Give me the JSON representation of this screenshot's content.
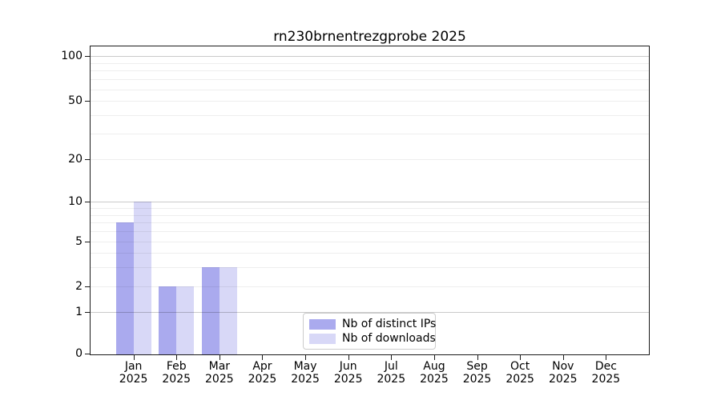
{
  "figure": {
    "background": "#ffffff"
  },
  "chart_data": {
    "type": "bar",
    "title": "rn230brnentrezgprobe 2025",
    "categories": [
      "Jan 2025",
      "Feb 2025",
      "Mar 2025",
      "Apr 2025",
      "May 2025",
      "Jun 2025",
      "Jul 2025",
      "Aug 2025",
      "Sep 2025",
      "Oct 2025",
      "Nov 2025",
      "Dec 2025"
    ],
    "months": [
      "Jan",
      "Feb",
      "Mar",
      "Apr",
      "May",
      "Jun",
      "Jul",
      "Aug",
      "Sep",
      "Oct",
      "Nov",
      "Dec"
    ],
    "year": "2025",
    "series": [
      {
        "name": "Nb of distinct IPs",
        "color": "#aaaaee",
        "values": [
          7,
          2,
          3,
          0,
          0,
          0,
          0,
          0,
          0,
          0,
          0,
          0
        ]
      },
      {
        "name": "Nb of downloads",
        "color": "#d8d8f7",
        "values": [
          10,
          2,
          3,
          0,
          0,
          0,
          0,
          0,
          0,
          0,
          0,
          0
        ]
      }
    ],
    "xlabel": "",
    "ylabel": "",
    "y_axis": {
      "scale": "log-like (compressed log, labels 0-100)",
      "tick_values": [
        0,
        1,
        2,
        5,
        10,
        20,
        50,
        100
      ],
      "major_gridlines": [
        1,
        10,
        100
      ],
      "minor_gridlines": [
        2,
        3,
        4,
        5,
        6,
        7,
        8,
        9,
        20,
        30,
        40,
        50,
        60,
        70,
        80,
        90
      ],
      "range": [
        0,
        100
      ]
    },
    "legend": {
      "position": "bottom-center",
      "entries": [
        "Nb of distinct IPs",
        "Nb of downloads"
      ]
    },
    "grid": true,
    "colors": {
      "spine": "#1a1a1a",
      "major_grid": "#c9c9c9",
      "minor_grid": "#ededed",
      "legend_border": "#cccccc",
      "text": "#000000"
    }
  }
}
